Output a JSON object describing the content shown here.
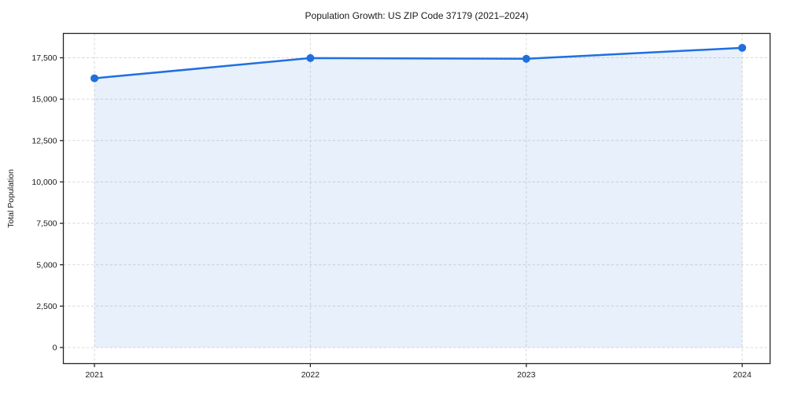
{
  "chart_data": {
    "type": "line",
    "title": "Population Growth: US ZIP Code 37179 (2021–2024)",
    "xlabel": "",
    "ylabel": "Total Population",
    "categories": [
      "2021",
      "2022",
      "2023",
      "2024"
    ],
    "x": [
      2021,
      2022,
      2023,
      2024
    ],
    "series": [
      {
        "name": "Total Population",
        "values": [
          16260,
          17480,
          17440,
          18100
        ]
      }
    ],
    "y_ticks": [
      0,
      2500,
      5000,
      7500,
      10000,
      12500,
      15000,
      17500
    ],
    "y_tick_labels": [
      "0",
      "2,500",
      "5,000",
      "7,500",
      "10,000",
      "12,500",
      "15,000",
      "17,500"
    ],
    "x_tick_labels": [
      "2021",
      "2022",
      "2023",
      "2024"
    ],
    "xlim": [
      2020.856,
      2024.129
    ],
    "ylim": [
      -970,
      18970
    ],
    "grid": true,
    "grid_style": "dashed",
    "legend": "none",
    "marker": "circle",
    "area_under_line": true,
    "colors": {
      "line": "#1f6fe0",
      "marker": "#1f6fe0",
      "area_fill": "#1f6fe0",
      "area_opacity": 0.1,
      "grid": "#d9d9d9",
      "spine": "#262626",
      "text": "#1a1a1a",
      "background": "#ffffff"
    }
  }
}
